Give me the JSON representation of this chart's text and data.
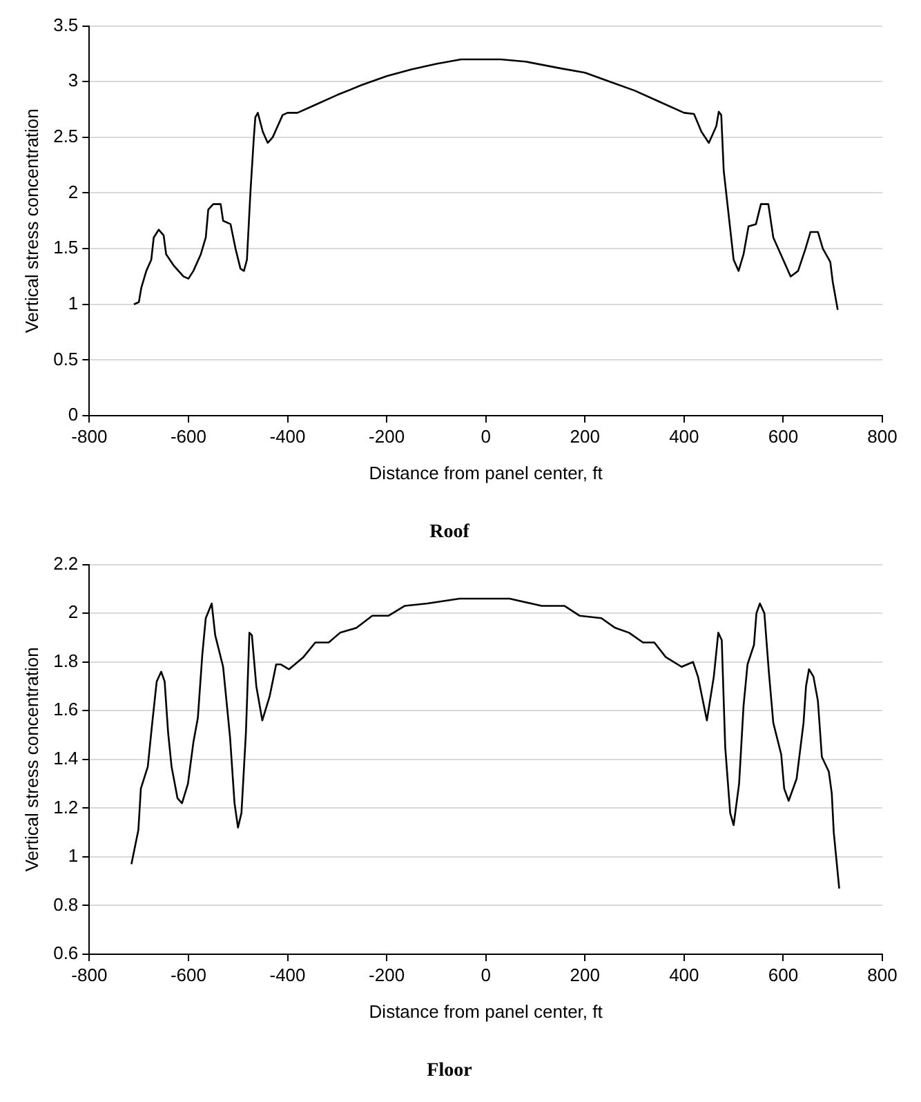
{
  "chart_data": [
    {
      "type": "line",
      "title": "Roof",
      "xlabel": "Distance from panel center, ft",
      "ylabel": "Vertical stress concentration",
      "xlim": [
        -800,
        800
      ],
      "xticks": [
        -800,
        -600,
        -400,
        -200,
        0,
        200,
        400,
        600,
        800
      ],
      "ylim": [
        0,
        3.5
      ],
      "yticks": [
        0,
        0.5,
        1,
        1.5,
        2,
        2.5,
        3,
        3.5
      ],
      "grid": "y",
      "legend": false,
      "series": [
        {
          "color": "#000000",
          "x": [
            -710,
            -700,
            -695,
            -685,
            -675,
            -670,
            -660,
            -650,
            -645,
            -630,
            -610,
            -600,
            -590,
            -575,
            -565,
            -560,
            -550,
            -535,
            -530,
            -515,
            -505,
            -495,
            -488,
            -482,
            -475,
            -468,
            -465,
            -460,
            -450,
            -440,
            -430,
            -420,
            -410,
            -400,
            -380,
            -350,
            -300,
            -250,
            -200,
            -150,
            -100,
            -50,
            0,
            30,
            80,
            150,
            200,
            250,
            300,
            350,
            400,
            420,
            435,
            450,
            465,
            470,
            475,
            480,
            490,
            500,
            510,
            520,
            530,
            545,
            555,
            570,
            580,
            600,
            615,
            630,
            645,
            655,
            670,
            680,
            695,
            700,
            710
          ],
          "values": [
            1.0,
            1.02,
            1.15,
            1.3,
            1.4,
            1.6,
            1.67,
            1.62,
            1.45,
            1.35,
            1.25,
            1.23,
            1.3,
            1.45,
            1.6,
            1.85,
            1.9,
            1.9,
            1.75,
            1.72,
            1.5,
            1.32,
            1.3,
            1.4,
            2.0,
            2.5,
            2.68,
            2.72,
            2.55,
            2.45,
            2.5,
            2.6,
            2.7,
            2.72,
            2.72,
            2.78,
            2.88,
            2.97,
            3.05,
            3.11,
            3.16,
            3.2,
            3.2,
            3.2,
            3.18,
            3.12,
            3.08,
            3.0,
            2.92,
            2.82,
            2.72,
            2.71,
            2.55,
            2.45,
            2.6,
            2.73,
            2.7,
            2.2,
            1.8,
            1.4,
            1.3,
            1.45,
            1.7,
            1.72,
            1.9,
            1.9,
            1.6,
            1.4,
            1.25,
            1.3,
            1.5,
            1.65,
            1.65,
            1.5,
            1.38,
            1.2,
            0.95
          ]
        }
      ]
    },
    {
      "type": "line",
      "title": "Floor",
      "xlabel": "Distance from panel center, ft",
      "ylabel": "Vertical stress concentration",
      "xlim": [
        -800,
        800
      ],
      "xticks": [
        -800,
        -600,
        -400,
        -200,
        0,
        200,
        400,
        600,
        800
      ],
      "ylim": [
        0.6,
        2.2
      ],
      "yticks": [
        0.6,
        0.8,
        1,
        1.2,
        1.4,
        1.6,
        1.8,
        2,
        2.2
      ],
      "grid": "y",
      "legend": false,
      "series": [
        {
          "color": "#000000",
          "x": [
            -715,
            -701,
            -696,
            -682,
            -673,
            -664,
            -655,
            -648,
            -641,
            -634,
            -622,
            -613,
            -601,
            -590,
            -581,
            -572,
            -565,
            -553,
            -546,
            -530,
            -516,
            -507,
            -500,
            -493,
            -484,
            -477,
            -472,
            -463,
            -451,
            -436,
            -423,
            -414,
            -397,
            -368,
            -344,
            -317,
            -294,
            -261,
            -229,
            -196,
            -164,
            -118,
            -53,
            0,
            48,
            113,
            159,
            189,
            233,
            261,
            289,
            317,
            340,
            363,
            395,
            418,
            428,
            446,
            460,
            469,
            476,
            483,
            493,
            500,
            511,
            520,
            528,
            541,
            546,
            553,
            562,
            571,
            580,
            596,
            602,
            611,
            627,
            641,
            646,
            652,
            661,
            670,
            678,
            692,
            698,
            702,
            713
          ],
          "values": [
            0.97,
            1.11,
            1.28,
            1.37,
            1.55,
            1.72,
            1.76,
            1.72,
            1.51,
            1.37,
            1.24,
            1.22,
            1.3,
            1.47,
            1.57,
            1.83,
            1.98,
            2.04,
            1.91,
            1.78,
            1.49,
            1.22,
            1.12,
            1.18,
            1.51,
            1.92,
            1.91,
            1.7,
            1.56,
            1.66,
            1.79,
            1.79,
            1.77,
            1.82,
            1.88,
            1.88,
            1.92,
            1.94,
            1.99,
            1.99,
            2.03,
            2.04,
            2.06,
            2.06,
            2.06,
            2.03,
            2.03,
            1.99,
            1.98,
            1.94,
            1.92,
            1.88,
            1.88,
            1.82,
            1.78,
            1.8,
            1.74,
            1.56,
            1.74,
            1.92,
            1.89,
            1.45,
            1.18,
            1.13,
            1.3,
            1.62,
            1.79,
            1.87,
            2.0,
            2.04,
            2.0,
            1.76,
            1.55,
            1.42,
            1.28,
            1.23,
            1.32,
            1.55,
            1.7,
            1.77,
            1.74,
            1.64,
            1.41,
            1.35,
            1.26,
            1.1,
            0.87
          ]
        }
      ]
    }
  ]
}
